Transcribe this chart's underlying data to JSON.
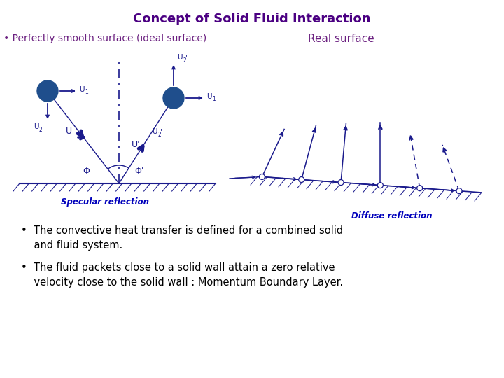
{
  "title": "Concept of Solid Fluid Interaction",
  "title_color": "#4B0082",
  "title_fontsize": 13,
  "bg_color": "#FFFFFF",
  "bullet1_label": "• Perfectly smooth surface (ideal surface)",
  "bullet2_label": "Real surface",
  "specular_label": "Specular reflection",
  "diffuse_label": "Diffuse reflection",
  "dark_blue": "#1a1a8c",
  "ball_color": "#1F4E8C",
  "purple_text": "#6B2080",
  "label_blue": "#0000BB",
  "black": "#000000"
}
